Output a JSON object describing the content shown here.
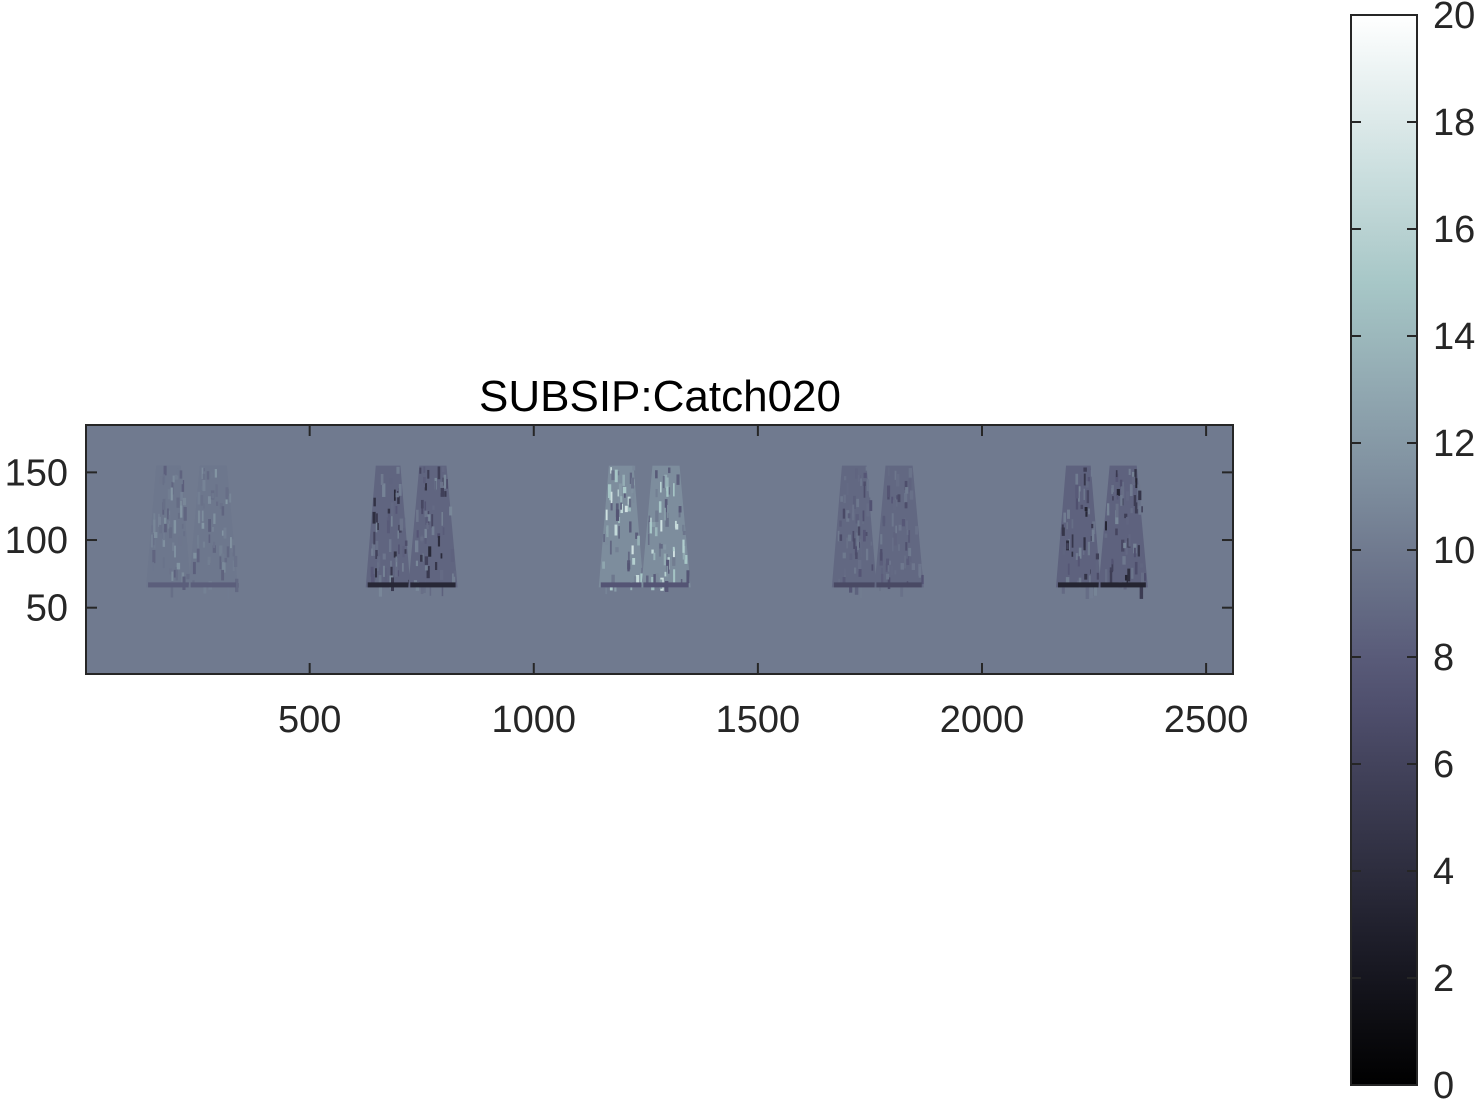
{
  "chart_data": {
    "type": "heatmap",
    "title": "SUBSIP:Catch020",
    "xlabel": "",
    "ylabel": "",
    "xlim": [
      1,
      2560
    ],
    "ylim": [
      1,
      185
    ],
    "y_direction": "normal",
    "x_ticks": [
      500,
      1000,
      1500,
      2000,
      2500
    ],
    "x_tick_labels": [
      "500",
      "1000",
      "1500",
      "2000",
      "2500"
    ],
    "y_ticks": [
      50,
      100,
      150
    ],
    "y_tick_labels": [
      "50",
      "100",
      "150"
    ],
    "colormap": "bone",
    "background_value": 10,
    "colorbar": {
      "location": "right",
      "limits": [
        0,
        20
      ],
      "ticks": [
        0,
        2,
        4,
        6,
        8,
        10,
        12,
        14,
        16,
        18,
        20
      ],
      "tick_labels": [
        "0",
        "2",
        "4",
        "6",
        "8",
        "10",
        "12",
        "14",
        "16",
        "18",
        "20"
      ]
    },
    "panels": [
      {
        "x_center": 230,
        "y_range": [
          65,
          155
        ],
        "mean_value": 9.8,
        "bright_spots": 12.5,
        "dark_spots": 8.2
      },
      {
        "x_center": 720,
        "y_range": [
          65,
          155
        ],
        "mean_value": 8.6,
        "bright_spots": 11.5,
        "dark_spots": 3.5
      },
      {
        "x_center": 1240,
        "y_range": [
          65,
          155
        ],
        "mean_value": 11.2,
        "bright_spots": 19.0,
        "dark_spots": 7.5
      },
      {
        "x_center": 1760,
        "y_range": [
          65,
          155
        ],
        "mean_value": 8.8,
        "bright_spots": 10.5,
        "dark_spots": 6.5
      },
      {
        "x_center": 2260,
        "y_range": [
          65,
          155
        ],
        "mean_value": 8.4,
        "bright_spots": 11.5,
        "dark_spots": 3.2
      }
    ],
    "grid": false,
    "legend": "none"
  },
  "colors": {
    "axis": "#262626",
    "background": "#ffffff"
  }
}
